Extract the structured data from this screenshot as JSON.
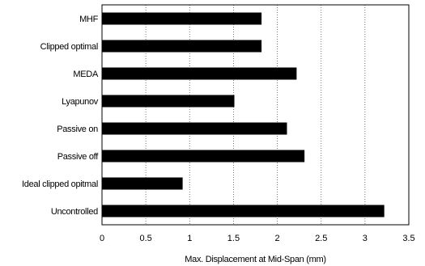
{
  "chart_data": {
    "type": "bar",
    "orientation": "horizontal",
    "title": "",
    "xlabel": "Max. Displacement at Mid-Span (mm)",
    "ylabel": "",
    "xlim": [
      0,
      3.5
    ],
    "xticks": [
      "0",
      "0.5",
      "1",
      "1.5",
      "2",
      "2.5",
      "3",
      "3.5"
    ],
    "grid": "vertical",
    "categories": [
      "MHF",
      "Clipped optimal",
      "MEDA",
      "Lyapunov",
      "Passive on",
      "Passive off",
      "Ideal clipped opitmal",
      "Uncontrolled"
    ],
    "values": [
      1.82,
      1.82,
      2.22,
      1.51,
      2.11,
      2.31,
      0.92,
      3.22
    ],
    "colors": {
      "bar": "#000000",
      "grid": "#555555",
      "axis": "#000000"
    }
  }
}
